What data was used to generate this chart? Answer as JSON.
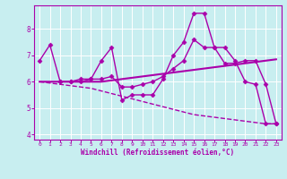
{
  "bg_color": "#c8eef0",
  "line_color": "#aa00aa",
  "grid_color": "#ffffff",
  "xlabel": "Windchill (Refroidissement éolien,°C)",
  "xlabel_color": "#aa00aa",
  "tick_color": "#aa00aa",
  "xlim": [
    -0.5,
    23.5
  ],
  "ylim": [
    3.8,
    8.9
  ],
  "yticks": [
    4,
    5,
    6,
    7,
    8
  ],
  "xticks": [
    0,
    1,
    2,
    3,
    4,
    5,
    6,
    7,
    8,
    9,
    10,
    11,
    12,
    13,
    14,
    15,
    16,
    17,
    18,
    19,
    20,
    21,
    22,
    23
  ],
  "lines": [
    {
      "x": [
        0,
        1,
        2,
        3,
        4,
        5,
        6,
        7,
        8,
        9,
        10,
        11,
        12,
        13,
        14,
        15,
        16,
        17,
        18,
        19,
        20,
        21,
        22,
        23
      ],
      "y": [
        6.8,
        7.4,
        6.0,
        6.0,
        6.1,
        6.1,
        6.8,
        7.3,
        5.3,
        5.5,
        5.5,
        5.5,
        6.1,
        7.0,
        7.5,
        8.6,
        8.6,
        7.3,
        7.3,
        6.8,
        6.0,
        5.9,
        4.4,
        4.4
      ],
      "marker": "D",
      "markersize": 2.5,
      "linewidth": 1.0,
      "linestyle": "-"
    },
    {
      "x": [
        2,
        3,
        4,
        5,
        6,
        7,
        8,
        9,
        10,
        11,
        12,
        13,
        14,
        15,
        16,
        17,
        18,
        19,
        20,
        21,
        22,
        23
      ],
      "y": [
        6.0,
        6.0,
        6.0,
        6.1,
        6.1,
        6.2,
        5.8,
        5.8,
        5.9,
        6.0,
        6.2,
        6.5,
        6.8,
        7.6,
        7.3,
        7.3,
        6.7,
        6.7,
        6.8,
        6.8,
        5.9,
        4.4
      ],
      "marker": "D",
      "markersize": 2.5,
      "linewidth": 1.0,
      "linestyle": "-"
    },
    {
      "x": [
        0,
        1,
        2,
        3,
        4,
        5,
        6,
        7,
        8,
        9,
        10,
        11,
        12,
        13,
        14,
        15,
        16,
        17,
        18,
        19,
        20,
        21,
        22,
        23
      ],
      "y": [
        6.0,
        5.95,
        5.9,
        5.85,
        5.8,
        5.75,
        5.65,
        5.55,
        5.45,
        5.35,
        5.25,
        5.15,
        5.05,
        4.95,
        4.85,
        4.75,
        4.7,
        4.65,
        4.6,
        4.55,
        4.5,
        4.45,
        4.4,
        4.4
      ],
      "marker": null,
      "markersize": 0,
      "linewidth": 1.0,
      "linestyle": "--"
    },
    {
      "x": [
        0,
        1,
        2,
        3,
        4,
        5,
        6,
        7,
        8,
        9,
        10,
        11,
        12,
        13,
        14,
        15,
        16,
        17,
        18,
        19,
        20,
        21,
        22,
        23
      ],
      "y": [
        6.0,
        6.0,
        6.0,
        6.0,
        6.0,
        6.0,
        6.0,
        6.05,
        6.1,
        6.15,
        6.2,
        6.25,
        6.3,
        6.35,
        6.4,
        6.45,
        6.5,
        6.55,
        6.6,
        6.65,
        6.7,
        6.75,
        6.8,
        6.85
      ],
      "marker": null,
      "markersize": 0,
      "linewidth": 1.5,
      "linestyle": "-"
    }
  ]
}
